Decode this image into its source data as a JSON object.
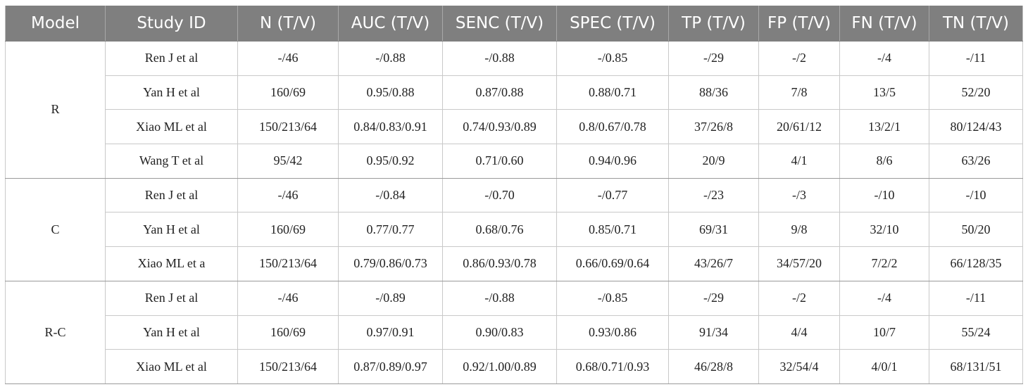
{
  "table": {
    "headers": [
      "Model",
      "Study ID",
      "N (T/V)",
      "AUC (T/V)",
      "SENC (T/V)",
      "SPEC (T/V)",
      "TP (T/V)",
      "FP (T/V)",
      "FN (T/V)",
      "TN (T/V)"
    ],
    "groups": [
      {
        "model": "R",
        "rows": [
          [
            "Ren J et al",
            "-/46",
            "-/0.88",
            "-/0.88",
            "-/0.85",
            "-/29",
            "-/2",
            "-/4",
            "-/11"
          ],
          [
            "Yan H et al",
            "160/69",
            "0.95/0.88",
            "0.87/0.88",
            "0.88/0.71",
            "88/36",
            "7/8",
            "13/5",
            "52/20"
          ],
          [
            "Xiao ML et al",
            "150/213/64",
            "0.84/0.83/0.91",
            "0.74/0.93/0.89",
            "0.8/0.67/0.78",
            "37/26/8",
            "20/61/12",
            "13/2/1",
            "80/124/43"
          ],
          [
            "Wang T et al",
            "95/42",
            "0.95/0.92",
            "0.71/0.60",
            "0.94/0.96",
            "20/9",
            "4/1",
            "8/6",
            "63/26"
          ]
        ]
      },
      {
        "model": "C",
        "rows": [
          [
            "Ren J et al",
            "-/46",
            "-/0.84",
            "-/0.70",
            "-/0.77",
            "-/23",
            "-/3",
            "-/10",
            "-/10"
          ],
          [
            "Yan H et al",
            "160/69",
            "0.77/0.77",
            "0.68/0.76",
            "0.85/0.71",
            "69/31",
            "9/8",
            "32/10",
            "50/20"
          ],
          [
            "Xiao ML et a",
            "150/213/64",
            "0.79/0.86/0.73",
            "0.86/0.93/0.78",
            "0.66/0.69/0.64",
            "43/26/7",
            "34/57/20",
            "7/2/2",
            "66/128/35"
          ]
        ]
      },
      {
        "model": "R-C",
        "rows": [
          [
            "Ren J et al",
            "-/46",
            "-/0.89",
            "-/0.88",
            "-/0.85",
            "-/29",
            "-/2",
            "-/4",
            "-/11"
          ],
          [
            "Yan H et al",
            "160/69",
            "0.97/0.91",
            "0.90/0.83",
            "0.93/0.86",
            "91/34",
            "4/4",
            "10/7",
            "55/24"
          ],
          [
            "Xiao ML et al",
            "150/213/64",
            "0.87/0.89/0.97",
            "0.92/1.00/0.89",
            "0.68/0.71/0.93",
            "46/28/8",
            "32/54/4",
            "4/0/1",
            "68/131/51"
          ]
        ]
      }
    ]
  }
}
